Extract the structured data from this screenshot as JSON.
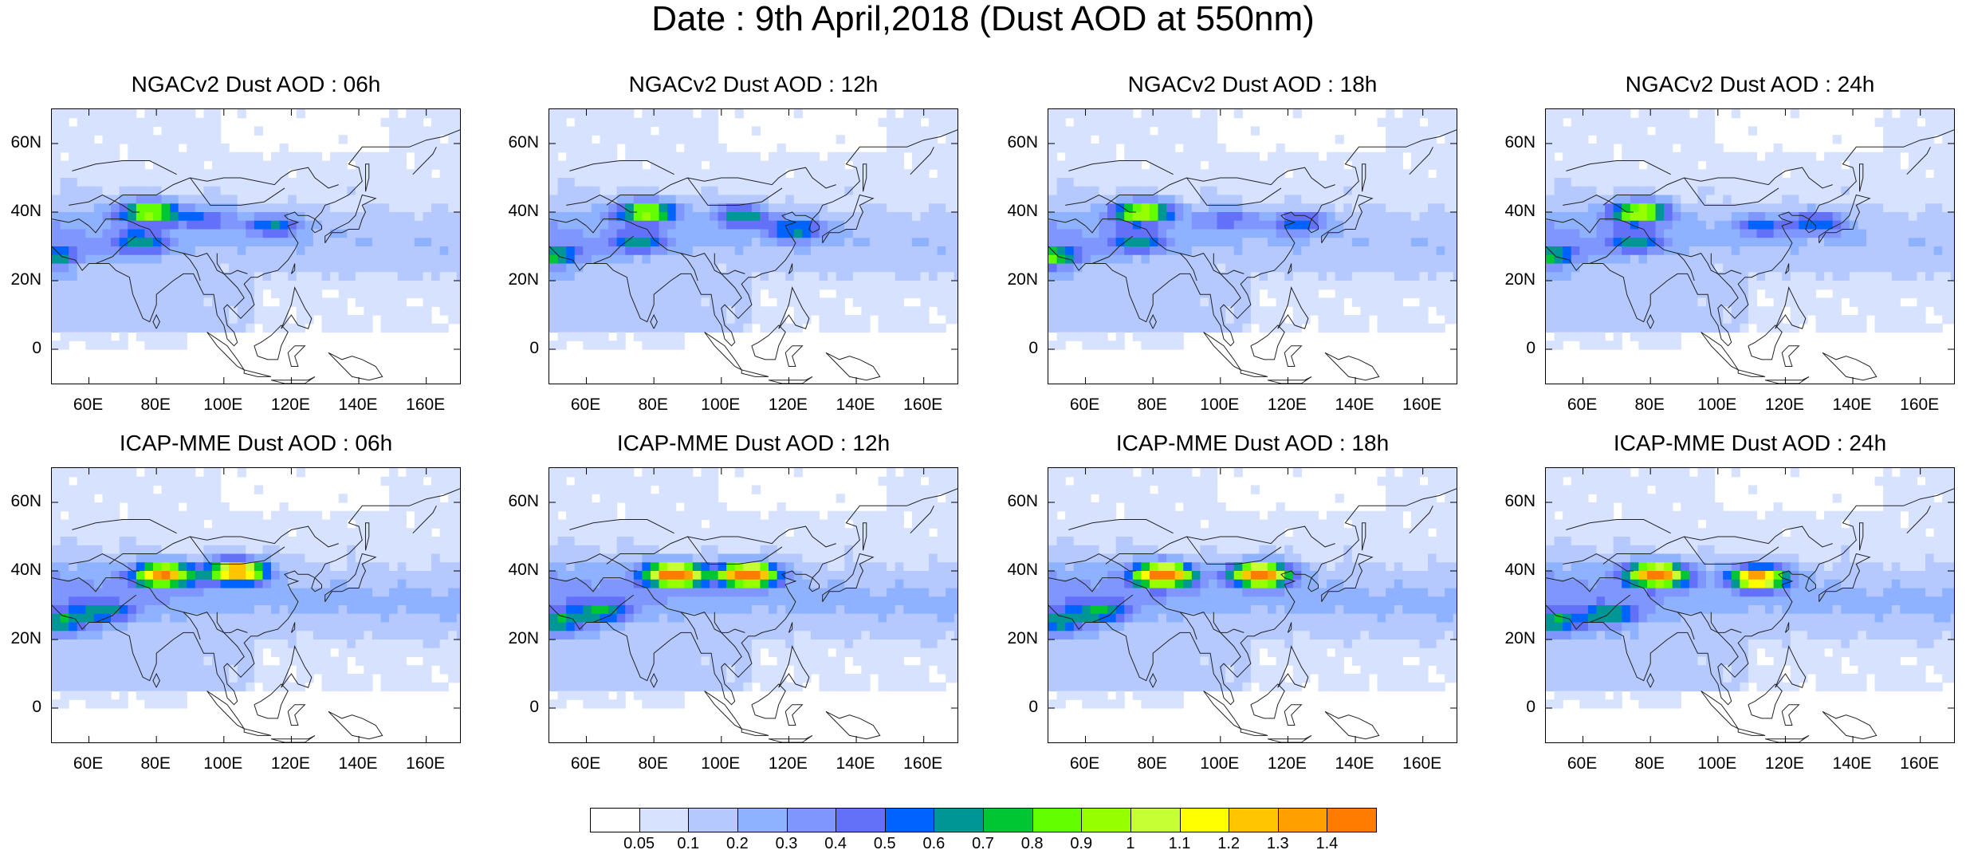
{
  "title": "Date : 9th April,2018 (Dust AOD at 550nm)",
  "panels": [
    {
      "title": "NGACv2 Dust AOD : 06h",
      "model": "NGACv2",
      "lead": "06h"
    },
    {
      "title": "NGACv2 Dust AOD : 12h",
      "model": "NGACv2",
      "lead": "12h"
    },
    {
      "title": "NGACv2 Dust AOD : 18h",
      "model": "NGACv2",
      "lead": "18h"
    },
    {
      "title": "NGACv2 Dust AOD : 24h",
      "model": "NGACv2",
      "lead": "24h"
    },
    {
      "title": "ICAP-MME Dust AOD : 06h",
      "model": "ICAP-MME",
      "lead": "06h"
    },
    {
      "title": "ICAP-MME Dust AOD : 12h",
      "model": "ICAP-MME",
      "lead": "12h"
    },
    {
      "title": "ICAP-MME Dust AOD : 18h",
      "model": "ICAP-MME",
      "lead": "18h"
    },
    {
      "title": "ICAP-MME Dust AOD : 24h",
      "model": "ICAP-MME",
      "lead": "24h"
    }
  ],
  "x_ticks": [
    "60E",
    "80E",
    "100E",
    "120E",
    "140E",
    "160E"
  ],
  "x_tick_values": [
    60,
    80,
    100,
    120,
    140,
    160
  ],
  "y_ticks": [
    "60N",
    "40N",
    "20N",
    "0"
  ],
  "y_tick_values": [
    60,
    40,
    20,
    0
  ],
  "lon_range": [
    49,
    170
  ],
  "lat_range": [
    -10,
    70
  ],
  "colorbar": {
    "labels": [
      "0.05",
      "0.1",
      "0.2",
      "0.3",
      "0.4",
      "0.5",
      "0.6",
      "0.7",
      "0.8",
      "0.9",
      "1",
      "1.1",
      "1.2",
      "1.3",
      "1.4"
    ],
    "colors": [
      "#ffffff",
      "#d6e2ff",
      "#b5c9ff",
      "#8eb2ff",
      "#7f96ff",
      "#6370f8",
      "#0063ff",
      "#009696",
      "#00c633",
      "#63ff00",
      "#96ff00",
      "#c6ff33",
      "#ffff00",
      "#ffc600",
      "#ffa000",
      "#ff7c00",
      "#ff1900"
    ]
  },
  "chart_data": {
    "type": "heatmap",
    "variable": "Dust AOD at 550nm",
    "levels": [
      0.05,
      0.1,
      0.2,
      0.3,
      0.4,
      0.5,
      0.6,
      0.7,
      0.8,
      0.9,
      1,
      1.1,
      1.2,
      1.3,
      1.4
    ],
    "panels": [
      {
        "model": "NGACv2",
        "lead": "06h",
        "band_base": 0.22,
        "blobs": [
          {
            "lon": 78,
            "lat": 40,
            "peak": 0.85
          },
          {
            "lon": 115,
            "lat": 36,
            "peak": 0.45
          },
          {
            "lon": 75,
            "lat": 31,
            "peak": 0.45
          },
          {
            "lon": 50,
            "lat": 27,
            "peak": 0.5
          },
          {
            "lon": 95,
            "lat": 38,
            "peak": 0.35
          }
        ]
      },
      {
        "model": "NGACv2",
        "lead": "12h",
        "band_base": 0.22,
        "blobs": [
          {
            "lon": 78,
            "lat": 40,
            "peak": 0.85
          },
          {
            "lon": 122,
            "lat": 35,
            "peak": 0.5
          },
          {
            "lon": 106,
            "lat": 39,
            "peak": 0.55
          },
          {
            "lon": 50,
            "lat": 27,
            "peak": 0.6
          },
          {
            "lon": 75,
            "lat": 31,
            "peak": 0.4
          }
        ]
      },
      {
        "model": "NGACv2",
        "lead": "18h",
        "band_base": 0.22,
        "blobs": [
          {
            "lon": 77,
            "lat": 40,
            "peak": 0.9
          },
          {
            "lon": 123,
            "lat": 37,
            "peak": 0.45
          },
          {
            "lon": 102,
            "lat": 38,
            "peak": 0.35
          },
          {
            "lon": 50,
            "lat": 27,
            "peak": 0.7
          },
          {
            "lon": 75,
            "lat": 31,
            "peak": 0.4
          }
        ]
      },
      {
        "model": "NGACv2",
        "lead": "24h",
        "band_base": 0.22,
        "blobs": [
          {
            "lon": 77,
            "lat": 40,
            "peak": 0.9
          },
          {
            "lon": 130,
            "lat": 37,
            "peak": 0.45
          },
          {
            "lon": 113,
            "lat": 36,
            "peak": 0.35
          },
          {
            "lon": 50,
            "lat": 27,
            "peak": 0.6
          },
          {
            "lon": 75,
            "lat": 31,
            "peak": 0.4
          }
        ]
      },
      {
        "model": "ICAP-MME",
        "lead": "06h",
        "band_base": 0.28,
        "blobs": [
          {
            "lon": 82,
            "lat": 39,
            "peak": 1.2
          },
          {
            "lon": 104,
            "lat": 40,
            "peak": 1.3
          },
          {
            "lon": 52,
            "lat": 25,
            "peak": 0.55
          },
          {
            "lon": 65,
            "lat": 28,
            "peak": 0.4
          }
        ]
      },
      {
        "model": "ICAP-MME",
        "lead": "12h",
        "band_base": 0.28,
        "blobs": [
          {
            "lon": 86,
            "lat": 39,
            "peak": 1.4
          },
          {
            "lon": 108,
            "lat": 39,
            "peak": 1.5
          },
          {
            "lon": 52,
            "lat": 25,
            "peak": 0.55
          },
          {
            "lon": 65,
            "lat": 28,
            "peak": 0.45
          }
        ]
      },
      {
        "model": "ICAP-MME",
        "lead": "18h",
        "band_base": 0.28,
        "blobs": [
          {
            "lon": 83,
            "lat": 39,
            "peak": 1.45
          },
          {
            "lon": 112,
            "lat": 39,
            "peak": 1.45
          },
          {
            "lon": 52,
            "lat": 25,
            "peak": 0.5
          },
          {
            "lon": 65,
            "lat": 28,
            "peak": 0.45
          }
        ]
      },
      {
        "model": "ICAP-MME",
        "lead": "24h",
        "band_base": 0.28,
        "blobs": [
          {
            "lon": 82,
            "lat": 39,
            "peak": 1.35
          },
          {
            "lon": 112,
            "lat": 38,
            "peak": 1.25
          },
          {
            "lon": 52,
            "lat": 25,
            "peak": 0.55
          },
          {
            "lon": 68,
            "lat": 27,
            "peak": 0.5
          }
        ]
      }
    ]
  }
}
